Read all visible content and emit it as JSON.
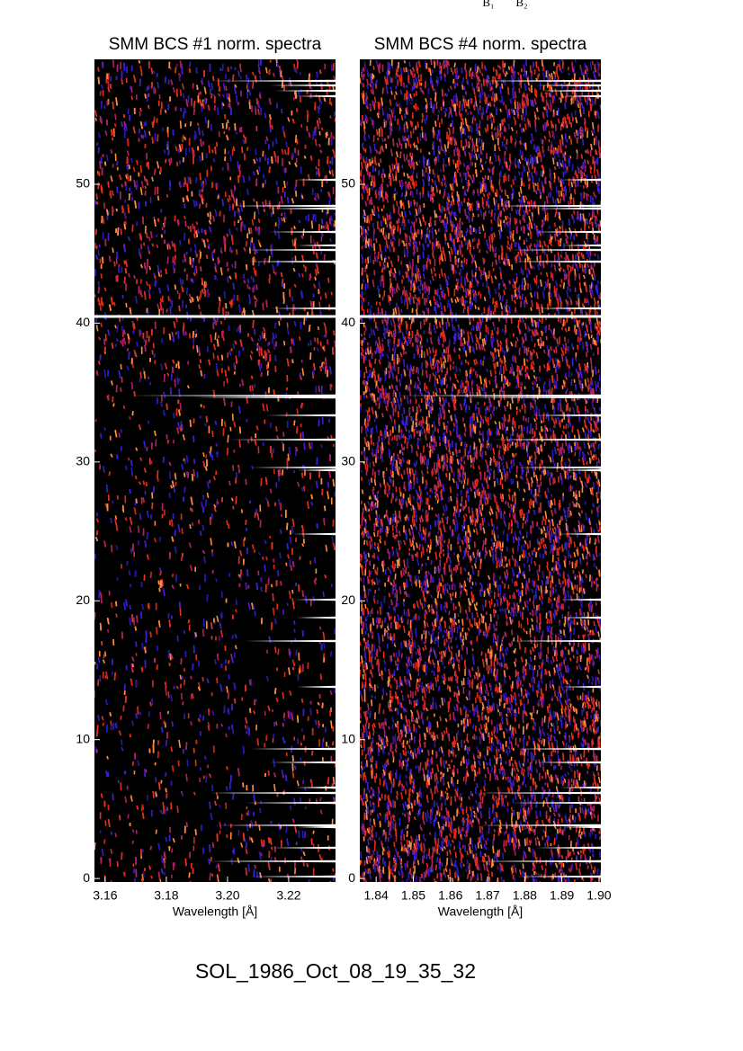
{
  "annotations": [
    "B₁",
    "B₂"
  ],
  "footer": "SOL_1986_Oct_08_19_35_32",
  "chart_data": [
    {
      "type": "heatmap",
      "title": "SMM BCS #1 norm. spectra",
      "xlabel": "Wavelength [Å]",
      "xlim": [
        3.1565,
        3.2353
      ],
      "xticks": [
        3.16,
        3.18,
        {
          "value": 3.2,
          "label": "3.20"
        },
        3.22
      ],
      "ylim": [
        -0.25,
        59
      ],
      "yticks": [
        0,
        10,
        20,
        30,
        40,
        50
      ]
    },
    {
      "type": "heatmap",
      "title": "SMM BCS #4 norm. spectra",
      "xlabel": "Wavelength [Å]",
      "xlim": [
        1.8356,
        1.9005
      ],
      "xticks": [
        1.84,
        1.85,
        1.86,
        1.87,
        1.88,
        1.89,
        {
          "value": 1.9,
          "label": "1.90"
        }
      ],
      "ylim": [
        -0.25,
        59
      ],
      "yticks": [
        0,
        10,
        20,
        30,
        40,
        50
      ]
    }
  ]
}
